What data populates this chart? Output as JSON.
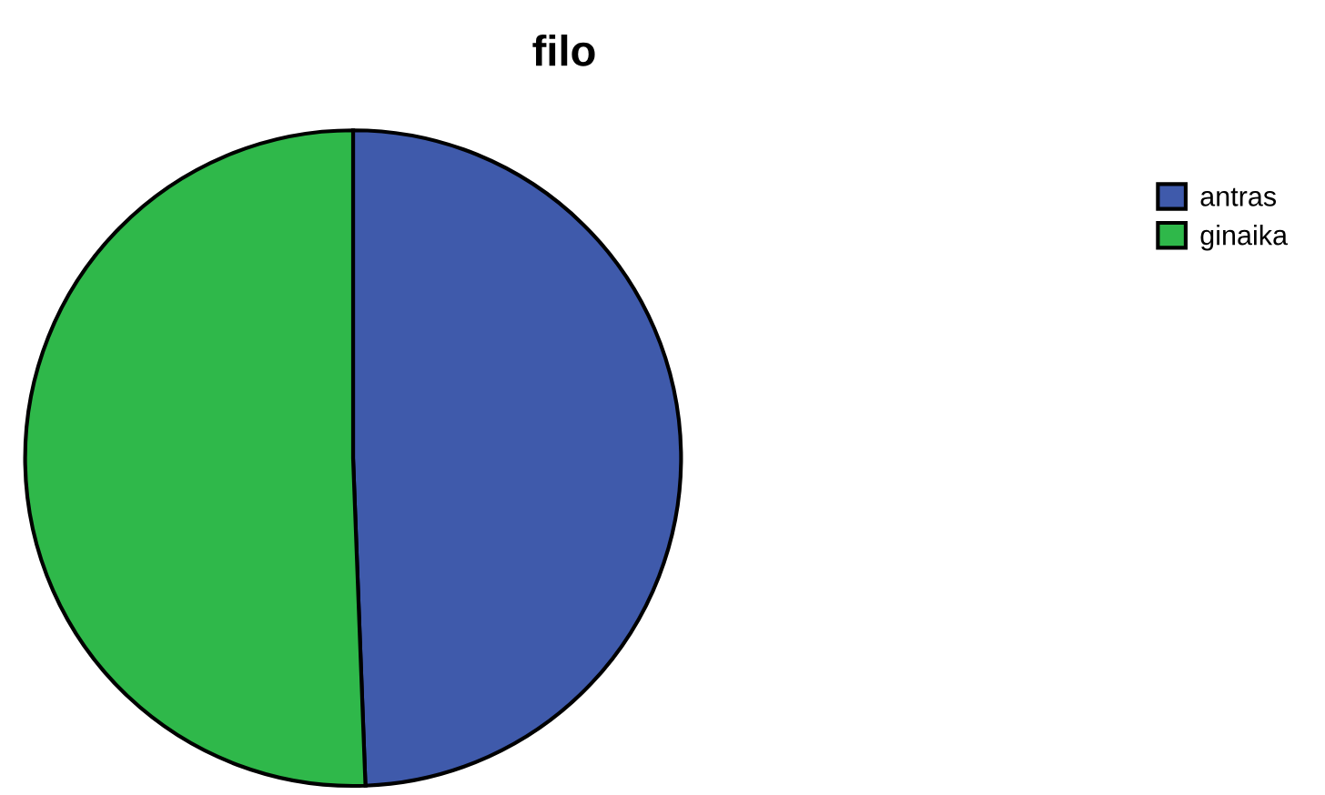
{
  "chart_data": {
    "type": "pie",
    "title": "filo",
    "categories": [
      "antras",
      "ginaika"
    ],
    "values": [
      49.4,
      50.6
    ],
    "colors": [
      "#3f5aab",
      "#2fb84a"
    ],
    "legend": "top right"
  }
}
